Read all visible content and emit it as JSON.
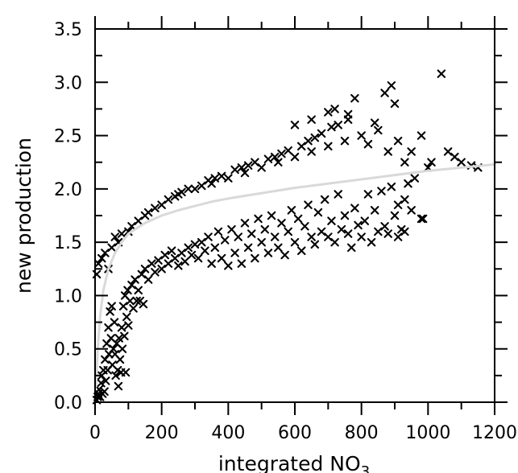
{
  "chart_data": {
    "type": "scatter",
    "xlabel": "integrated NO",
    "xlabel_subscript": "3",
    "ylabel": "new production",
    "xlim": [
      0,
      1200
    ],
    "ylim": [
      0,
      3.5
    ],
    "x_ticks": [
      0,
      200,
      400,
      600,
      800,
      1000,
      1200
    ],
    "y_ticks": [
      0.0,
      0.5,
      1.0,
      1.5,
      2.0,
      2.5,
      3.0,
      3.5
    ],
    "x_tick_labels": [
      "0",
      "200",
      "400",
      "600",
      "800",
      "1000",
      "1200"
    ],
    "y_tick_labels": [
      "0.0",
      "0.5",
      "1.0",
      "1.5",
      "2.0",
      "2.5",
      "3.0",
      "3.5"
    ],
    "grid": false,
    "point_color": "#000000",
    "fit_color": "#d9d9d9",
    "series": [
      {
        "marker": "x",
        "points": [
          [
            5,
            0.02
          ],
          [
            8,
            0.05
          ],
          [
            10,
            0.08
          ],
          [
            12,
            0.12
          ],
          [
            15,
            0.05
          ],
          [
            18,
            0.18
          ],
          [
            20,
            0.25
          ],
          [
            22,
            0.08
          ],
          [
            25,
            0.3
          ],
          [
            28,
            0.1
          ],
          [
            30,
            0.4
          ],
          [
            32,
            0.2
          ],
          [
            35,
            0.55
          ],
          [
            38,
            0.3
          ],
          [
            40,
            0.7
          ],
          [
            42,
            0.45
          ],
          [
            45,
            0.85
          ],
          [
            48,
            0.6
          ],
          [
            50,
            0.9
          ],
          [
            52,
            0.35
          ],
          [
            55,
            0.5
          ],
          [
            58,
            0.75
          ],
          [
            60,
            0.45
          ],
          [
            62,
            0.25
          ],
          [
            65,
            0.55
          ],
          [
            68,
            0.3
          ],
          [
            70,
            0.15
          ],
          [
            72,
            0.6
          ],
          [
            75,
            0.4
          ],
          [
            78,
            0.28
          ],
          [
            80,
            0.7
          ],
          [
            82,
            0.5
          ],
          [
            85,
            0.9
          ],
          [
            88,
            0.62
          ],
          [
            90,
            1.0
          ],
          [
            92,
            0.28
          ],
          [
            95,
            0.8
          ],
          [
            98,
            1.05
          ],
          [
            100,
            0.72
          ],
          [
            105,
            0.95
          ],
          [
            110,
            1.1
          ],
          [
            115,
            0.88
          ],
          [
            120,
            1.15
          ],
          [
            125,
            0.95
          ],
          [
            130,
            1.05
          ],
          [
            135,
            0.95
          ],
          [
            140,
            1.2
          ],
          [
            145,
            0.92
          ],
          [
            150,
            1.25
          ],
          [
            160,
            1.15
          ],
          [
            170,
            1.3
          ],
          [
            180,
            1.22
          ],
          [
            190,
            1.33
          ],
          [
            200,
            1.25
          ],
          [
            210,
            1.38
          ],
          [
            220,
            1.3
          ],
          [
            230,
            1.42
          ],
          [
            240,
            1.35
          ],
          [
            250,
            1.28
          ],
          [
            260,
            1.4
          ],
          [
            270,
            1.32
          ],
          [
            280,
            1.45
          ],
          [
            290,
            1.38
          ],
          [
            300,
            1.48
          ],
          [
            310,
            1.35
          ],
          [
            320,
            1.5
          ],
          [
            330,
            1.42
          ],
          [
            340,
            1.55
          ],
          [
            350,
            1.3
          ],
          [
            360,
            1.45
          ],
          [
            370,
            1.6
          ],
          [
            380,
            1.35
          ],
          [
            390,
            1.52
          ],
          [
            400,
            1.28
          ],
          [
            410,
            1.62
          ],
          [
            420,
            1.4
          ],
          [
            430,
            1.55
          ],
          [
            440,
            1.3
          ],
          [
            450,
            1.68
          ],
          [
            460,
            1.45
          ],
          [
            470,
            1.58
          ],
          [
            480,
            1.35
          ],
          [
            490,
            1.72
          ],
          [
            500,
            1.5
          ],
          [
            510,
            1.62
          ],
          [
            520,
            1.4
          ],
          [
            530,
            1.75
          ],
          [
            540,
            1.55
          ],
          [
            550,
            1.45
          ],
          [
            560,
            1.68
          ],
          [
            570,
            1.38
          ],
          [
            580,
            1.6
          ],
          [
            590,
            1.8
          ],
          [
            600,
            1.5
          ],
          [
            610,
            1.72
          ],
          [
            620,
            1.42
          ],
          [
            630,
            1.65
          ],
          [
            640,
            1.85
          ],
          [
            650,
            1.55
          ],
          [
            660,
            1.48
          ],
          [
            670,
            1.78
          ],
          [
            680,
            1.6
          ],
          [
            690,
            1.9
          ],
          [
            700,
            1.55
          ],
          [
            710,
            1.7
          ],
          [
            720,
            1.5
          ],
          [
            730,
            1.95
          ],
          [
            740,
            1.62
          ],
          [
            750,
            1.75
          ],
          [
            760,
            1.58
          ],
          [
            770,
            1.45
          ],
          [
            780,
            1.82
          ],
          [
            790,
            1.66
          ],
          [
            800,
            1.55
          ],
          [
            810,
            1.7
          ],
          [
            820,
            1.95
          ],
          [
            830,
            1.5
          ],
          [
            840,
            1.8
          ],
          [
            850,
            1.6
          ],
          [
            860,
            1.98
          ],
          [
            870,
            1.65
          ],
          [
            880,
            1.58
          ],
          [
            890,
            2.02
          ],
          [
            900,
            1.75
          ],
          [
            910,
            1.85
          ],
          [
            920,
            1.62
          ],
          [
            930,
            1.9
          ],
          [
            940,
            2.05
          ],
          [
            950,
            1.8
          ],
          [
            960,
            2.1
          ],
          [
            980,
            1.72
          ],
          [
            1000,
            2.2
          ],
          [
            1040,
            3.08
          ],
          [
            1080,
            2.3
          ],
          [
            1130,
            2.22
          ],
          [
            890,
            2.97
          ],
          [
            870,
            2.9
          ],
          [
            780,
            2.85
          ],
          [
            900,
            2.8
          ],
          [
            720,
            2.75
          ],
          [
            760,
            2.7
          ],
          [
            700,
            2.72
          ],
          [
            650,
            2.65
          ],
          [
            600,
            2.6
          ],
          [
            850,
            2.55
          ],
          [
            800,
            2.5
          ],
          [
            980,
            2.5
          ],
          [
            750,
            2.45
          ],
          [
            700,
            2.4
          ],
          [
            820,
            2.42
          ],
          [
            650,
            2.35
          ],
          [
            600,
            2.3
          ],
          [
            550,
            2.25
          ],
          [
            500,
            2.2
          ],
          [
            450,
            2.15
          ],
          [
            400,
            2.1
          ],
          [
            350,
            2.05
          ],
          [
            300,
            2.0
          ],
          [
            250,
            1.95
          ],
          [
            200,
            1.85
          ],
          [
            150,
            1.75
          ],
          [
            100,
            1.6
          ],
          [
            70,
            1.5
          ],
          [
            50,
            1.45
          ],
          [
            30,
            1.4
          ],
          [
            20,
            1.35
          ],
          [
            10,
            1.3
          ],
          [
            5,
            1.2
          ],
          [
            40,
            1.25
          ],
          [
            60,
            1.55
          ],
          [
            80,
            1.58
          ],
          [
            110,
            1.65
          ],
          [
            130,
            1.7
          ],
          [
            160,
            1.78
          ],
          [
            180,
            1.82
          ],
          [
            220,
            1.9
          ],
          [
            240,
            1.93
          ],
          [
            260,
            1.97
          ],
          [
            280,
            2.0
          ],
          [
            320,
            2.03
          ],
          [
            340,
            2.08
          ],
          [
            360,
            2.1
          ],
          [
            380,
            2.12
          ],
          [
            420,
            2.18
          ],
          [
            440,
            2.2
          ],
          [
            460,
            2.22
          ],
          [
            480,
            2.25
          ],
          [
            520,
            2.28
          ],
          [
            540,
            2.3
          ],
          [
            560,
            2.33
          ],
          [
            580,
            2.36
          ],
          [
            620,
            2.4
          ],
          [
            640,
            2.45
          ],
          [
            660,
            2.48
          ],
          [
            680,
            2.52
          ],
          [
            710,
            2.58
          ],
          [
            730,
            2.6
          ],
          [
            760,
            2.65
          ],
          [
            840,
            2.62
          ],
          [
            880,
            2.35
          ],
          [
            910,
            2.45
          ],
          [
            930,
            2.25
          ],
          [
            950,
            2.35
          ],
          [
            1010,
            2.25
          ],
          [
            1060,
            2.35
          ],
          [
            1100,
            2.25
          ],
          [
            1150,
            2.2
          ],
          [
            985,
            1.72
          ],
          [
            930,
            1.6
          ],
          [
            910,
            1.55
          ]
        ]
      }
    ],
    "fit_line": [
      [
        3,
        0.15
      ],
      [
        8,
        0.5
      ],
      [
        15,
        0.8
      ],
      [
        25,
        1.05
      ],
      [
        40,
        1.25
      ],
      [
        60,
        1.4
      ],
      [
        80,
        1.5
      ],
      [
        100,
        1.58
      ],
      [
        150,
        1.68
      ],
      [
        200,
        1.75
      ],
      [
        250,
        1.8
      ],
      [
        300,
        1.84
      ],
      [
        350,
        1.88
      ],
      [
        400,
        1.91
      ],
      [
        500,
        1.96
      ],
      [
        600,
        2.01
      ],
      [
        700,
        2.05
      ],
      [
        800,
        2.09
      ],
      [
        900,
        2.13
      ],
      [
        1000,
        2.17
      ],
      [
        1100,
        2.2
      ],
      [
        1200,
        2.23
      ]
    ]
  }
}
